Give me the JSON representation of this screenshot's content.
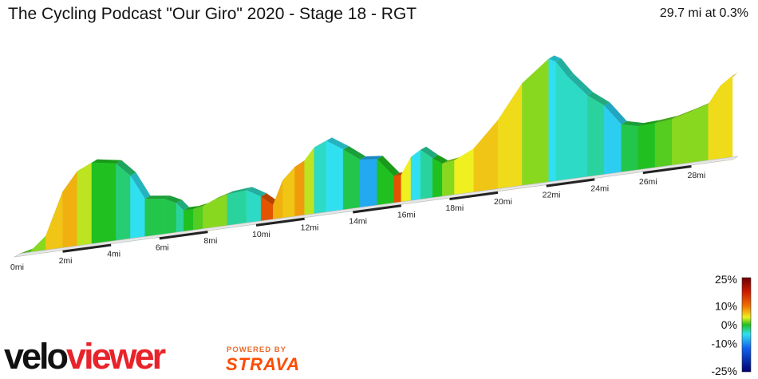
{
  "header": {
    "title": "The Cycling Podcast \"Our Giro\" 2020 - Stage 18 - RGT",
    "summary": "29.7 mi at 0.3%"
  },
  "legend": {
    "labels": [
      "25%",
      "10%",
      "0%",
      "-10%",
      "-25%"
    ],
    "values": [
      25,
      10,
      0,
      -10,
      -25
    ]
  },
  "branding": {
    "velo": "velo",
    "viewer": "viewer",
    "powered_by": "POWERED BY",
    "strava": "STRAVA"
  },
  "colors": {
    "logo_red": "#e8232a",
    "strava_orange": "#fc4c02",
    "gradient_steep": "#7a0000",
    "gradient_climb": "#f0f020",
    "gradient_flat": "#20c020",
    "gradient_descent": "#30e0f0",
    "gradient_steep_descent": "#000088"
  },
  "chart_data": {
    "type": "area",
    "title": "The Cycling Podcast \"Our Giro\" 2020 - Stage 18 - RGT",
    "x_unit": "mi",
    "xlim": [
      0,
      29.7
    ],
    "x_ticks": [
      0,
      2,
      4,
      6,
      8,
      10,
      12,
      14,
      16,
      18,
      20,
      22,
      24,
      26,
      28
    ],
    "x_tick_labels": [
      "0mi",
      "2mi",
      "4mi",
      "6mi",
      "8mi",
      "10mi",
      "12mi",
      "14mi",
      "16mi",
      "18mi",
      "20mi",
      "22mi",
      "24mi",
      "26mi",
      "28mi"
    ],
    "distance_mi": 29.7,
    "average_gradient_pct": 0.3,
    "color_scale_pct": [
      -25,
      25
    ],
    "series": [
      {
        "x": [
          0,
          0.7,
          1.3,
          2,
          2.6,
          3.2,
          4.2,
          4.8,
          5.4,
          6.2,
          6.7,
          7,
          7.4,
          7.8,
          8.2,
          8.8,
          9.6,
          10.2,
          10.7,
          11.1,
          11.6,
          12,
          12.4,
          12.9,
          13.6,
          14.3,
          15,
          15.7,
          16,
          16.4,
          16.8,
          17.3,
          17.7,
          18.2,
          19,
          20,
          21,
          22.1,
          22.4,
          22.9,
          23.7,
          24.4,
          25.1,
          25.8,
          26.5,
          27.2,
          28,
          28.7,
          29.2,
          29.7
        ],
        "y": [
          0.0,
          0.05,
          0.2,
          0.7,
          0.92,
          1.0,
          0.95,
          0.78,
          0.48,
          0.45,
          0.38,
          0.28,
          0.28,
          0.3,
          0.35,
          0.4,
          0.42,
          0.32,
          0.2,
          0.48,
          0.62,
          0.68,
          0.82,
          0.88,
          0.75,
          0.6,
          0.58,
          0.35,
          0.35,
          0.55,
          0.62,
          0.5,
          0.42,
          0.44,
          0.55,
          0.85,
          1.25,
          1.5,
          1.45,
          1.25,
          1.0,
          0.85,
          0.6,
          0.55,
          0.56,
          0.58,
          0.64,
          0.7,
          0.9,
          1.0
        ],
        "gradient_pct": [
          1,
          2,
          6,
          7,
          3,
          0,
          -2,
          -5,
          -1,
          -1,
          -3,
          0,
          1,
          2,
          2,
          -3,
          -4,
          12,
          7,
          6,
          8,
          3,
          -4,
          -5,
          -1,
          -8,
          0,
          12,
          4,
          -5,
          -3,
          0,
          2,
          4,
          6,
          5,
          2,
          -5,
          -4,
          -4,
          -3,
          -6,
          -1,
          0,
          1,
          2,
          2,
          5,
          5
        ]
      }
    ]
  }
}
